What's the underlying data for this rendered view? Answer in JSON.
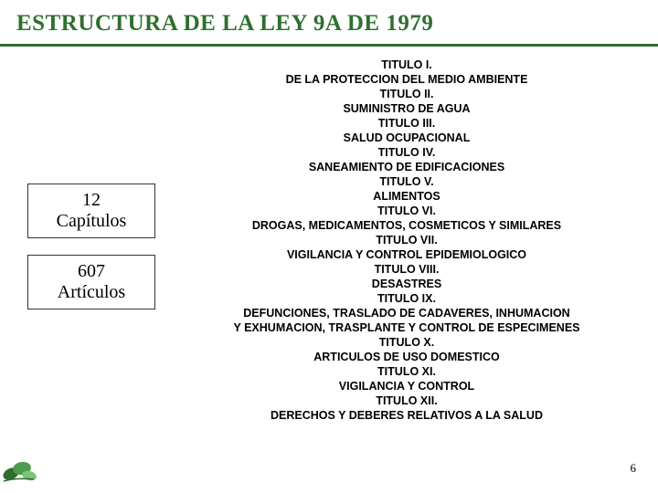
{
  "colors": {
    "accent": "#2f6f2f",
    "title_text": "#2f6f2f",
    "border": "#2f6f2f",
    "body_text": "#000000",
    "background": "#ffffff",
    "leaf_dark": "#2e6b2e",
    "leaf_mid": "#4c9a4c",
    "leaf_light": "#7bc47b"
  },
  "header": {
    "title": "ESTRUCTURA DE LA LEY 9A DE 1979",
    "title_fontsize": 25
  },
  "left": {
    "box1_line1": "12",
    "box1_line2": "Capítulos",
    "box2_line1": "607",
    "box2_line2": "Artículos"
  },
  "toc": [
    "TITULO I.",
    "DE LA PROTECCION DEL MEDIO AMBIENTE",
    "TITULO II.",
    "SUMINISTRO DE AGUA",
    "TITULO III.",
    "SALUD OCUPACIONAL",
    "TITULO IV.",
    "SANEAMIENTO DE EDIFICACIONES",
    "TITULO V.",
    "ALIMENTOS",
    "TITULO VI.",
    "DROGAS, MEDICAMENTOS, COSMETICOS Y SIMILARES",
    "TITULO VII.",
    "VIGILANCIA Y CONTROL EPIDEMIOLOGICO",
    "TITULO VIII.",
    "DESASTRES",
    "TITULO IX.",
    "DEFUNCIONES, TRASLADO DE CADAVERES, INHUMACION",
    "Y EXHUMACION, TRASPLANTE Y CONTROL DE ESPECIMENES",
    "TITULO X.",
    "ARTICULOS DE USO DOMESTICO",
    "TITULO XI.",
    "VIGILANCIA Y CONTROL",
    "TITULO XII.",
    "DERECHOS Y DEBERES RELATIVOS A LA SALUD"
  ],
  "page_number": "6"
}
